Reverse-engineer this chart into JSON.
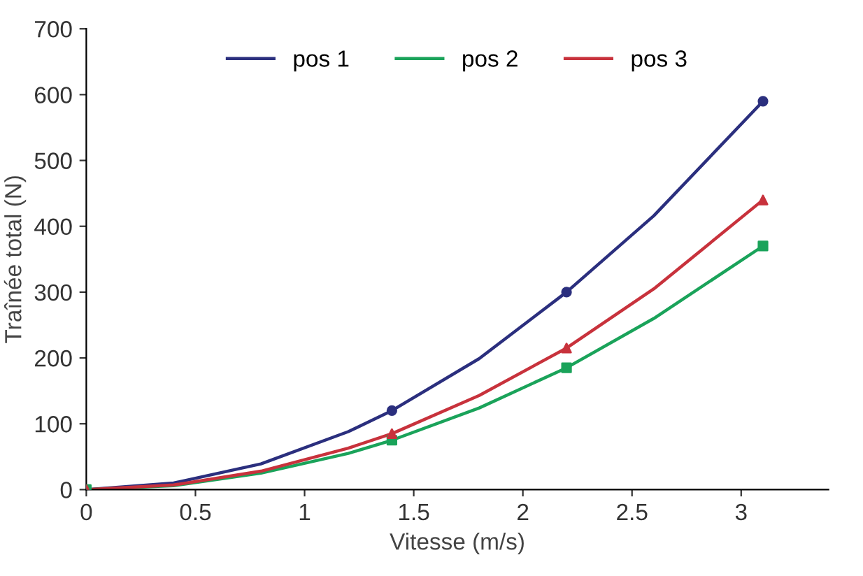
{
  "chart_data": {
    "type": "line",
    "xlabel": "Vitesse (m/s)",
    "ylabel": "Traînée total (N)",
    "x": [
      0,
      0.4,
      0.8,
      1.2,
      1.4,
      1.8,
      2.2,
      2.6,
      3.1
    ],
    "series": [
      {
        "name": "pos 1",
        "color": "#2b2f7e",
        "marker": "none",
        "values": [
          0,
          10,
          39,
          88,
          120,
          199,
          300,
          416,
          590
        ]
      },
      {
        "name": "pos 2",
        "color": "#1aa35a",
        "marker": "none",
        "values": [
          0,
          6,
          25,
          55,
          75,
          124,
          185,
          260,
          370
        ]
      },
      {
        "name": "pos 3",
        "color": "#c8323c",
        "marker": "none",
        "values": [
          0,
          7,
          28,
          63,
          85,
          143,
          215,
          305,
          440
        ]
      },
      {
        "type": "scatter",
        "color": "#2b2f7e",
        "marker": "circle",
        "x": [
          0,
          1.4,
          2.2,
          3.1
        ],
        "values": [
          0,
          120,
          300,
          590
        ]
      },
      {
        "type": "scatter",
        "color": "#1aa35a",
        "marker": "square",
        "x": [
          0,
          1.4,
          2.2,
          3.1
        ],
        "values": [
          0,
          75,
          185,
          370
        ]
      },
      {
        "type": "scatter",
        "color": "#c8323c",
        "marker": "triangle",
        "x": [
          0,
          1.4,
          2.2,
          3.1
        ],
        "values": [
          0,
          85,
          215,
          440
        ]
      }
    ],
    "xlim": [
      0,
      3.4
    ],
    "xticks": [
      0,
      0.5,
      1,
      1.5,
      2,
      2.5,
      3
    ],
    "ylim": [
      0,
      700
    ],
    "yticks": [
      0,
      100,
      200,
      300,
      400,
      500,
      600,
      700
    ],
    "grid": false,
    "legend": "top",
    "line_style": "solid"
  }
}
